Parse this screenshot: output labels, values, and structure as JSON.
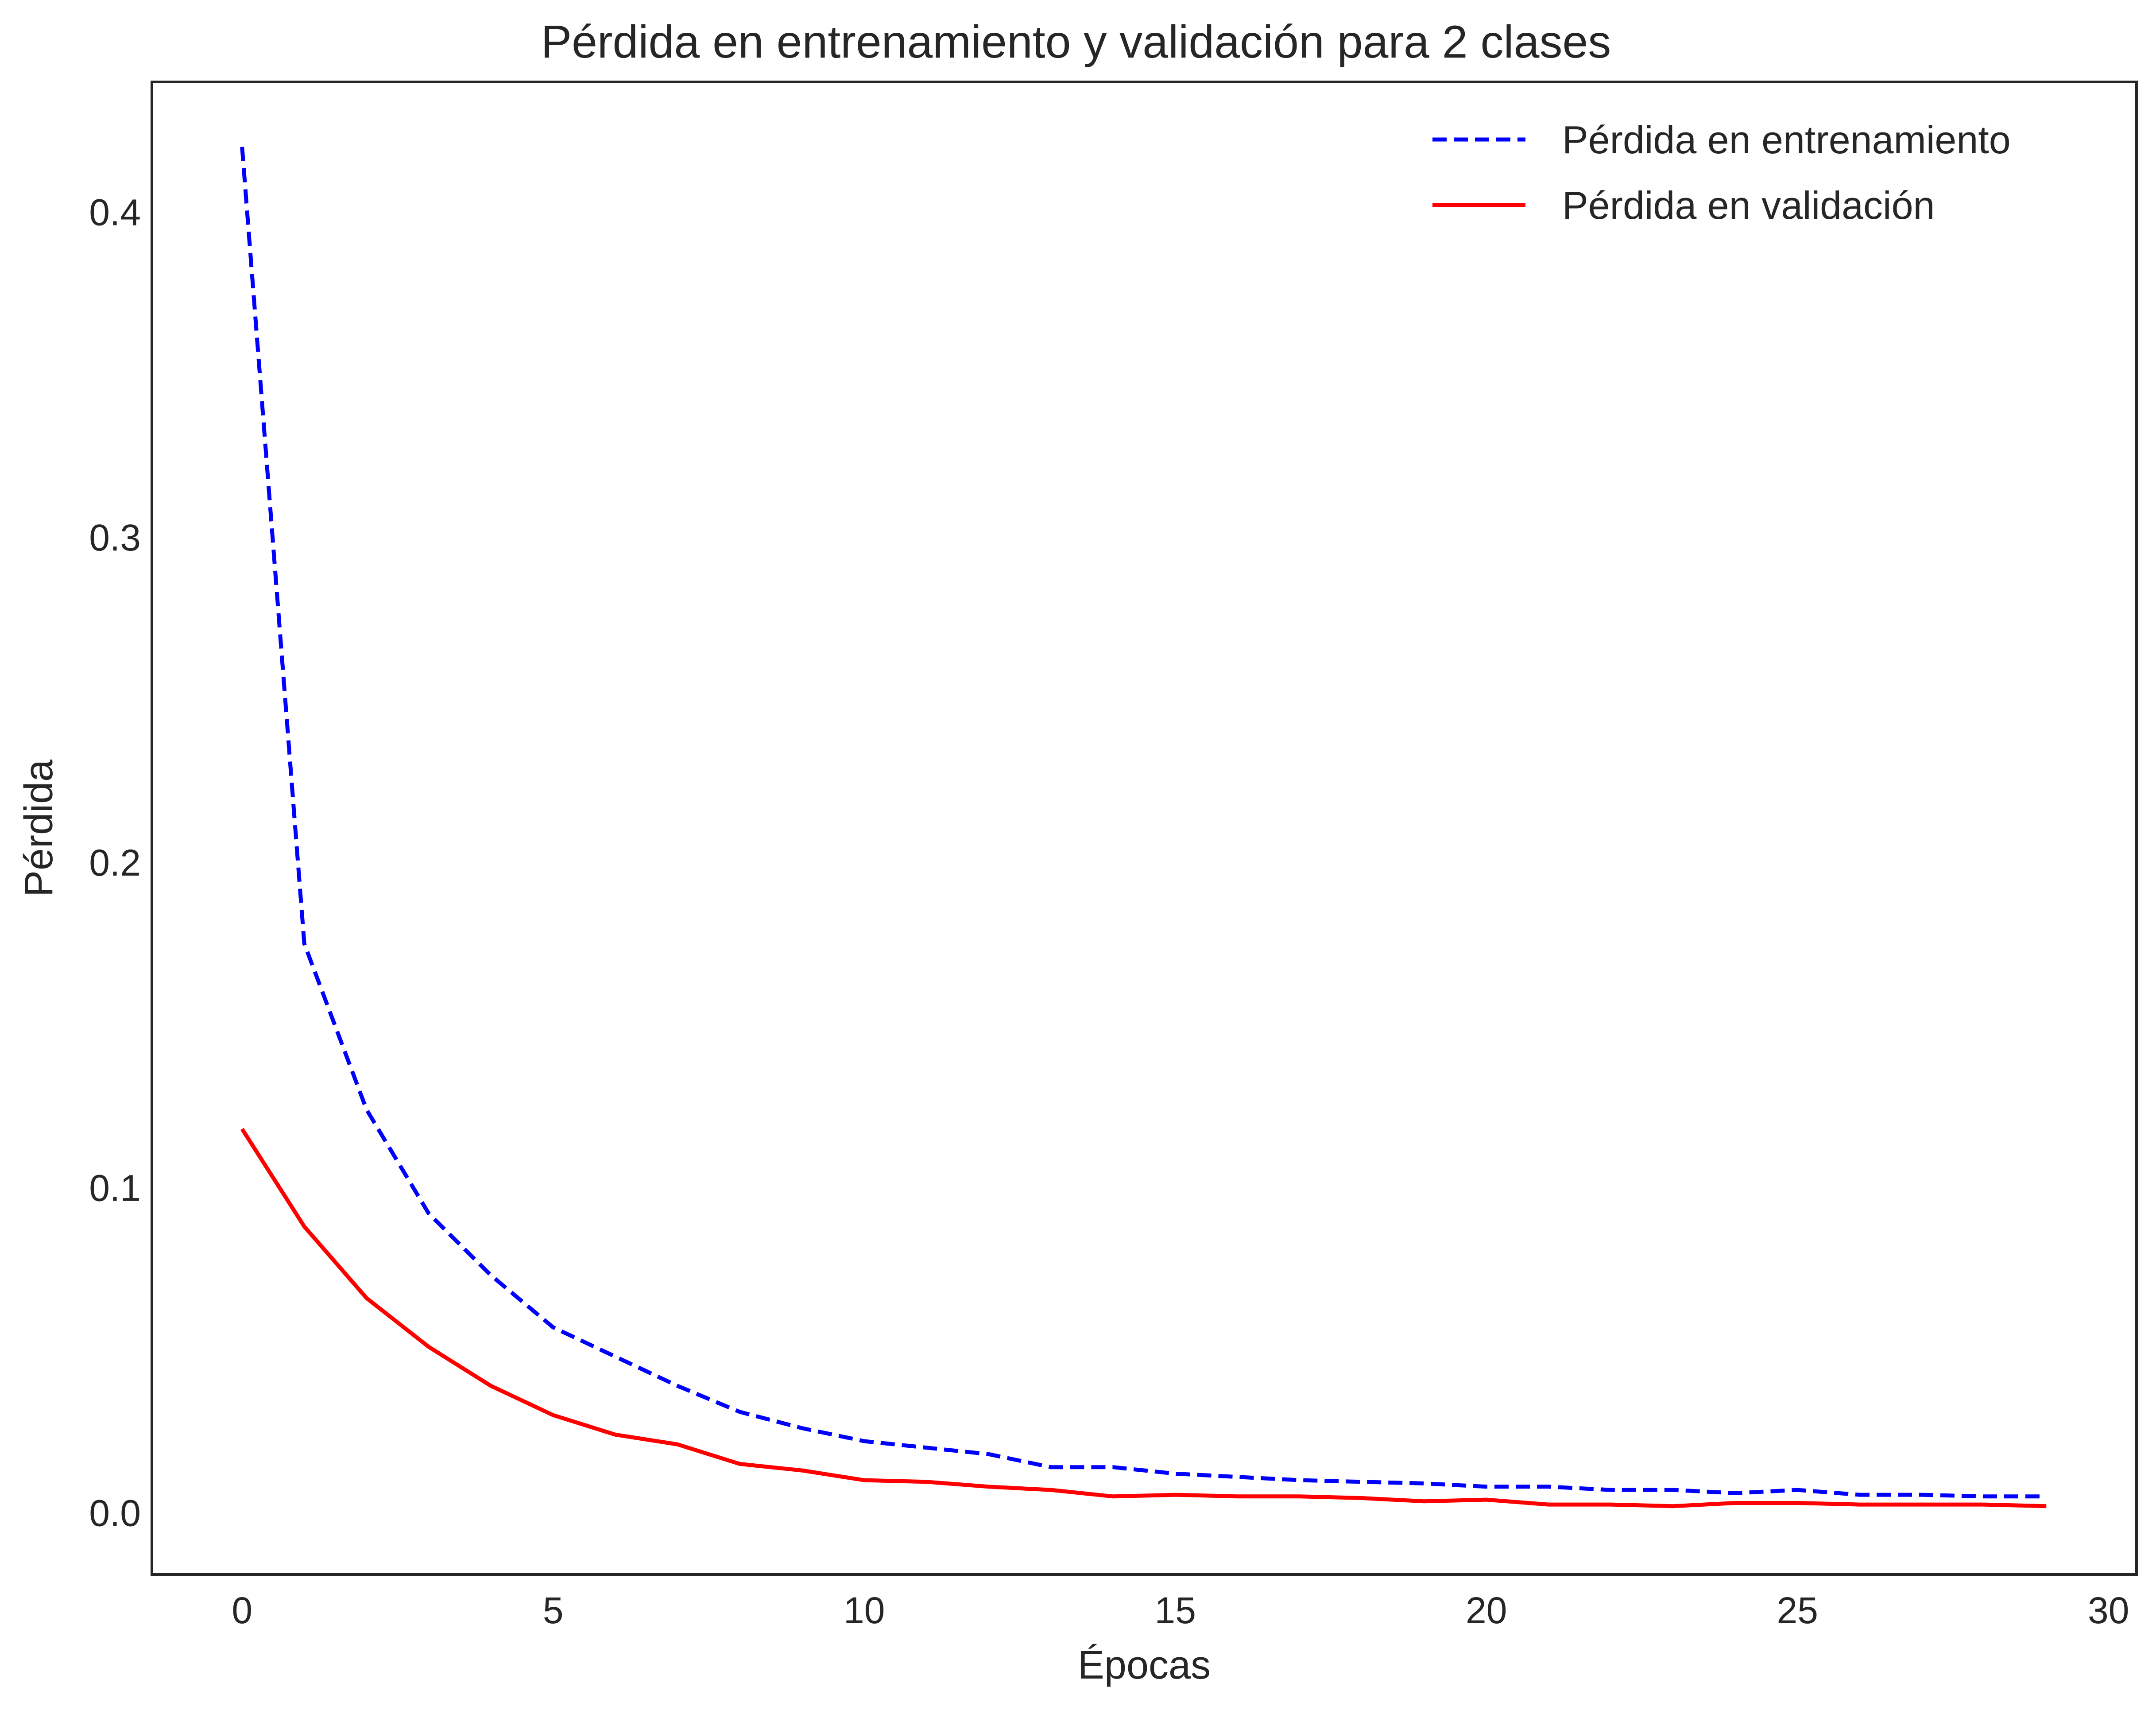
{
  "chart_data": {
    "type": "line",
    "title": "Pérdida en entrenamiento y validación para 2 clases",
    "xlabel": "Épocas",
    "ylabel": "Pérdida",
    "xlim": [
      -1.45,
      30.45
    ],
    "ylim": [
      -0.019,
      0.44
    ],
    "xticks": [
      0,
      5,
      10,
      15,
      20,
      25,
      30
    ],
    "yticks": [
      0.0,
      0.1,
      0.2,
      0.3,
      0.4
    ],
    "ytick_labels": [
      "0.0",
      "0.1",
      "0.2",
      "0.3",
      "0.4"
    ],
    "grid": false,
    "legend_position": "top-right",
    "x": [
      0,
      1,
      2,
      3,
      4,
      5,
      6,
      7,
      8,
      9,
      10,
      11,
      12,
      13,
      14,
      15,
      16,
      17,
      18,
      19,
      20,
      21,
      22,
      23,
      24,
      25,
      26,
      27,
      28,
      29
    ],
    "series": [
      {
        "name": "Pérdida en entrenamiento",
        "color": "#0000ff",
        "style": "dashed",
        "values": [
          0.42,
          0.175,
          0.124,
          0.092,
          0.073,
          0.057,
          0.048,
          0.039,
          0.031,
          0.026,
          0.022,
          0.02,
          0.018,
          0.014,
          0.014,
          0.012,
          0.011,
          0.01,
          0.0095,
          0.009,
          0.008,
          0.008,
          0.007,
          0.007,
          0.006,
          0.007,
          0.0055,
          0.0055,
          0.005,
          0.005
        ]
      },
      {
        "name": "Pérdida en validación",
        "color": "#ff0000",
        "style": "solid",
        "values": [
          0.118,
          0.088,
          0.066,
          0.051,
          0.039,
          0.03,
          0.024,
          0.021,
          0.015,
          0.013,
          0.01,
          0.0095,
          0.008,
          0.007,
          0.005,
          0.0055,
          0.005,
          0.005,
          0.0045,
          0.0035,
          0.004,
          0.0025,
          0.0025,
          0.002,
          0.003,
          0.003,
          0.0025,
          0.0025,
          0.0025,
          0.002
        ]
      }
    ]
  }
}
